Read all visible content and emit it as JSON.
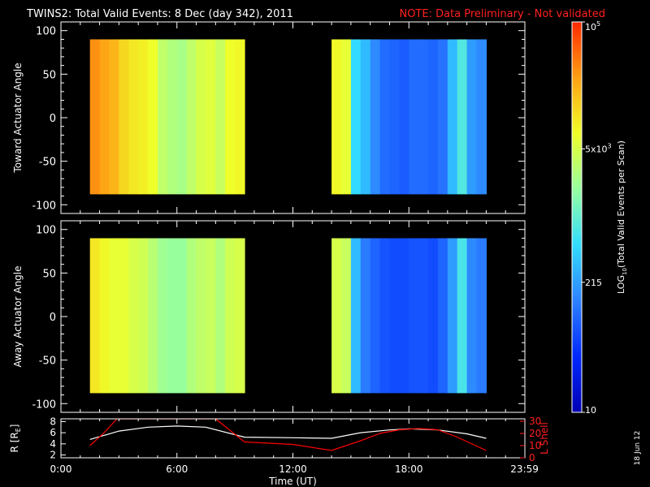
{
  "header": {
    "title": "TWINS2: Total Valid Events:  8 Dec (day 342), 2011",
    "note": "NOTE: Data Preliminary - Not validated"
  },
  "side_date": "18 Jun 12",
  "colorbar": {
    "label": "LOG10(Total Valid Events per Scan)",
    "label_parts": [
      "LOG",
      "10",
      "(Total Valid  Events  per Scan)"
    ],
    "scale": "log",
    "range": [
      10,
      100000
    ],
    "ticks": [
      {
        "value": 100000,
        "base": "10",
        "exp": "5"
      },
      {
        "value": 5000,
        "base": "5x10",
        "exp": "3"
      },
      {
        "value": 215,
        "base": "215",
        "exp": ""
      },
      {
        "value": 10,
        "base": "10",
        "exp": ""
      }
    ],
    "colors": [
      "#0000b4",
      "#0028ff",
      "#2d82ff",
      "#32dcff",
      "#96ffa0",
      "#f0ff28",
      "#ffa014",
      "#ff2800"
    ]
  },
  "chart_data": [
    {
      "type": "heatmap",
      "ylabel": "Toward Actuator Angle",
      "xlim": [
        0,
        24
      ],
      "ylim": [
        -110,
        110
      ],
      "yticks": [
        100,
        50,
        0,
        -50,
        -100
      ],
      "angle_range": [
        -88,
        90
      ],
      "blocks": [
        {
          "t_start": 1.5,
          "t_end": 9.5,
          "columns": [
            {
              "t": 1.5,
              "log": 4.5
            },
            {
              "t": 2.0,
              "log": 4.4
            },
            {
              "t": 2.5,
              "log": 4.3
            },
            {
              "t": 3.0,
              "log": 4.1
            },
            {
              "t": 3.5,
              "log": 4.0
            },
            {
              "t": 4.0,
              "log": 3.95
            },
            {
              "t": 4.5,
              "log": 3.85
            },
            {
              "t": 5.0,
              "log": 3.55
            },
            {
              "t": 5.5,
              "log": 3.45
            },
            {
              "t": 6.0,
              "log": 3.4
            },
            {
              "t": 6.5,
              "log": 3.55
            },
            {
              "t": 7.0,
              "log": 3.7
            },
            {
              "t": 7.5,
              "log": 3.75
            },
            {
              "t": 8.0,
              "log": 3.6
            },
            {
              "t": 8.5,
              "log": 3.85
            },
            {
              "t": 9.0,
              "log": 3.9
            }
          ]
        },
        {
          "t_start": 14.0,
          "t_end": 22.0,
          "columns": [
            {
              "t": 14.0,
              "log": 3.9
            },
            {
              "t": 14.5,
              "log": 3.8
            },
            {
              "t": 15.0,
              "log": 2.7
            },
            {
              "t": 15.5,
              "log": 2.5
            },
            {
              "t": 16.0,
              "log": 2.2
            },
            {
              "t": 16.5,
              "log": 2.0
            },
            {
              "t": 17.0,
              "log": 1.95
            },
            {
              "t": 17.5,
              "log": 1.9
            },
            {
              "t": 18.0,
              "log": 2.0
            },
            {
              "t": 18.5,
              "log": 2.0
            },
            {
              "t": 19.0,
              "log": 1.95
            },
            {
              "t": 19.5,
              "log": 2.05
            },
            {
              "t": 20.0,
              "log": 2.5
            },
            {
              "t": 20.5,
              "log": 2.9
            },
            {
              "t": 21.0,
              "log": 2.3
            },
            {
              "t": 21.5,
              "log": 2.2
            }
          ]
        }
      ]
    },
    {
      "type": "heatmap",
      "ylabel": "Away Actuator Angle",
      "xlim": [
        0,
        24
      ],
      "ylim": [
        -110,
        110
      ],
      "yticks": [
        100,
        50,
        0,
        -50,
        -100
      ],
      "angle_range": [
        -88,
        90
      ],
      "blocks": [
        {
          "t_start": 1.5,
          "t_end": 9.5,
          "columns": [
            {
              "t": 1.5,
              "log": 4.0
            },
            {
              "t": 2.0,
              "log": 3.9
            },
            {
              "t": 2.5,
              "log": 3.8
            },
            {
              "t": 3.0,
              "log": 3.8
            },
            {
              "t": 3.5,
              "log": 3.7
            },
            {
              "t": 4.0,
              "log": 3.65
            },
            {
              "t": 4.5,
              "log": 3.5
            },
            {
              "t": 5.0,
              "log": 3.35
            },
            {
              "t": 5.5,
              "log": 3.3
            },
            {
              "t": 6.0,
              "log": 3.3
            },
            {
              "t": 6.5,
              "log": 3.45
            },
            {
              "t": 7.0,
              "log": 3.55
            },
            {
              "t": 7.5,
              "log": 3.6
            },
            {
              "t": 8.0,
              "log": 3.45
            },
            {
              "t": 8.5,
              "log": 3.65
            },
            {
              "t": 9.0,
              "log": 3.7
            }
          ]
        },
        {
          "t_start": 14.0,
          "t_end": 22.0,
          "columns": [
            {
              "t": 14.0,
              "log": 3.7
            },
            {
              "t": 14.5,
              "log": 3.6
            },
            {
              "t": 15.0,
              "log": 2.5
            },
            {
              "t": 15.5,
              "log": 2.1
            },
            {
              "t": 16.0,
              "log": 1.95
            },
            {
              "t": 16.5,
              "log": 1.85
            },
            {
              "t": 17.0,
              "log": 1.8
            },
            {
              "t": 17.5,
              "log": 1.8
            },
            {
              "t": 18.0,
              "log": 1.85
            },
            {
              "t": 18.5,
              "log": 1.85
            },
            {
              "t": 19.0,
              "log": 1.8
            },
            {
              "t": 19.5,
              "log": 1.95
            },
            {
              "t": 20.0,
              "log": 2.3
            },
            {
              "t": 20.5,
              "log": 2.85
            },
            {
              "t": 21.0,
              "log": 2.2
            },
            {
              "t": 21.5,
              "log": 2.1
            }
          ]
        }
      ]
    },
    {
      "type": "line",
      "xlabel": "Time (UT)",
      "xlim": [
        0,
        24
      ],
      "xticks": [
        {
          "value": 0,
          "label": "0:00"
        },
        {
          "value": 6,
          "label": "6:00"
        },
        {
          "value": 12,
          "label": "12:00"
        },
        {
          "value": 18,
          "label": "18:00"
        },
        {
          "value": 23.983,
          "label": "23:59"
        }
      ],
      "ylabel_left": {
        "base": "R [R",
        "sub": "E",
        "end": "]"
      },
      "ylim_left": [
        1.5,
        8.5
      ],
      "yticks_left": [
        2,
        4,
        6,
        8
      ],
      "ylabel_right": "L Shell",
      "ylim_right": [
        0,
        32
      ],
      "yticks_right": [
        0,
        10,
        20,
        30
      ],
      "series": [
        {
          "axis": "left",
          "color": "#ffffff",
          "x": [
            1.5,
            3,
            4.5,
            6,
            7.5,
            9.5,
            12,
            14,
            15.5,
            17,
            18,
            19.5,
            21,
            22
          ],
          "y": [
            4.8,
            6.3,
            7.0,
            7.2,
            7.0,
            5.2,
            5.1,
            5.0,
            6.0,
            6.5,
            6.7,
            6.5,
            5.8,
            5.0
          ]
        },
        {
          "axis": "right",
          "color": "#ff0000",
          "x": [
            1.5,
            2.2,
            2.9,
            8.0,
            9.5,
            12,
            14,
            15.5,
            16.5,
            17.5,
            18.5,
            19.5,
            20.5,
            22
          ],
          "y": [
            10,
            20,
            32,
            32,
            13,
            11,
            6,
            14,
            20,
            23,
            24,
            23,
            17,
            6
          ]
        }
      ]
    }
  ]
}
